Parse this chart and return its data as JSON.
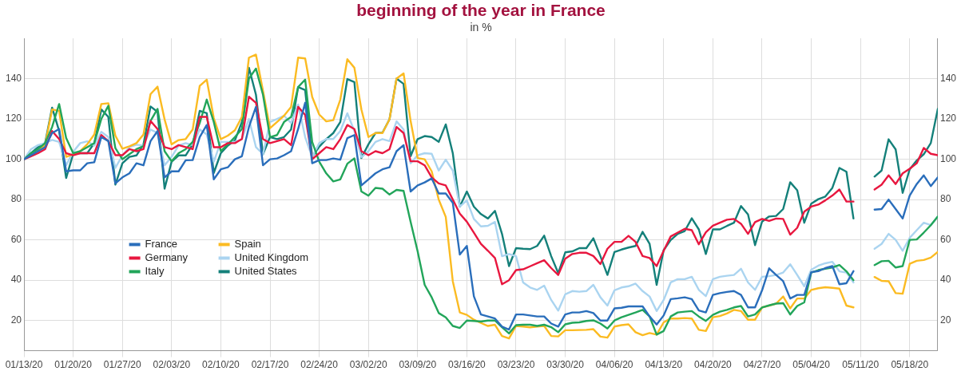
{
  "chart_data": {
    "type": "line",
    "title": "beginning of the year in France",
    "subtitle": "in %",
    "x": [
      "--01-13",
      "--01-14",
      "--01-15",
      "--01-16",
      "--01-17",
      "--01-18",
      "--01-19",
      "--01-20",
      "--01-21",
      "--01-22",
      "--01-23",
      "--01-24",
      "--01-25",
      "--01-26",
      "--01-27",
      "--01-28",
      "--01-29",
      "--01-30",
      "--01-31",
      "--02-01",
      "--02-02",
      "--02-03",
      "--02-04",
      "--02-05",
      "--02-06",
      "--02-07",
      "--02-08",
      "--02-09",
      "--02-10",
      "--02-11",
      "--02-12",
      "--02-13",
      "--02-14",
      "--02-15",
      "--02-16",
      "--02-17",
      "--02-18",
      "--02-19",
      "--02-20",
      "--02-21",
      "--02-22",
      "--02-23",
      "--02-24",
      "--02-25",
      "--02-26",
      "--02-27",
      "--02-28",
      "--02-29",
      "--03-01",
      "--03-02",
      "--03-03",
      "--03-04",
      "--03-05",
      "--03-06",
      "--03-07",
      "--03-08",
      "--03-09",
      "--03-10",
      "--03-11",
      "--03-12",
      "--03-13",
      "--03-14",
      "--03-15",
      "--03-16",
      "--03-17",
      "--03-18",
      "--03-19",
      "--03-20",
      "--03-21",
      "--03-22",
      "--03-23",
      "--03-24",
      "--03-25",
      "--03-26",
      "--03-27",
      "--03-28",
      "--03-29",
      "--03-30",
      "--03-31",
      "--04-01",
      "--04-02",
      "--04-03",
      "--04-04",
      "--04-05",
      "--04-06",
      "--04-07",
      "--04-08",
      "--04-09",
      "--04-10",
      "--04-11",
      "--04-12",
      "--04-13",
      "--04-14",
      "--04-15",
      "--04-16",
      "--04-17",
      "--04-18",
      "--04-19",
      "--04-20",
      "--04-21",
      "--04-22",
      "--04-23",
      "--04-24",
      "--04-25",
      "--04-26",
      "--04-27",
      "--04-28",
      "--04-29",
      "--04-30",
      "--05-01",
      "--05-02",
      "--05-03",
      "--05-04",
      "--05-05",
      "--05-06",
      "--05-07",
      "--05-08",
      "--05-09",
      "--05-10",
      "--05-11",
      "--05-12",
      "--05-13",
      "--05-14",
      "--05-15",
      "--05-16",
      "--05-17",
      "--05-18",
      "--05-19",
      "--05-20",
      "--05-21",
      "--05-22"
    ],
    "series": [
      {
        "name": "France",
        "color": "#2a6ebb",
        "values": [
          100,
          102,
          104,
          106,
          113,
          115,
          94,
          94.5,
          94.5,
          98,
          98.5,
          111,
          109,
          88,
          91,
          93,
          98,
          97,
          109,
          114,
          91,
          94,
          94,
          99.5,
          99.6,
          111,
          117,
          90,
          95,
          96,
          100,
          101.5,
          116,
          126,
          97,
          100,
          100.4,
          102,
          104,
          115,
          128,
          98,
          99.6,
          99.6,
          100.4,
          99.8,
          110.5,
          112,
          87,
          90,
          93,
          95,
          96,
          104,
          107,
          84,
          87,
          88.5,
          90.5,
          83,
          83,
          78.4,
          52.7,
          57,
          32,
          23,
          22,
          21,
          17,
          15.5,
          23,
          23,
          22.5,
          22,
          22,
          18.5,
          17,
          23,
          24,
          24,
          24.7,
          23.7,
          20,
          20,
          26,
          26.3,
          27,
          27,
          27,
          22,
          18,
          22.5,
          30.6,
          31,
          31.5,
          30.6,
          25,
          24,
          32.7,
          33.6,
          34.2,
          34.6,
          32.7,
          26.5,
          26.5,
          35,
          45.9,
          42.6,
          39.5,
          30.9,
          32.7,
          32.7,
          44,
          44.5,
          46,
          47,
          38,
          38.5,
          44.5,
          null,
          null,
          75,
          75.3,
          80,
          75.3,
          70.6,
          82,
          87.7,
          92,
          86.7,
          91
        ]
      },
      {
        "name": "Germany",
        "color": "#e8173f",
        "values": [
          100,
          101.5,
          103,
          105,
          114,
          110,
          103,
          102,
          103,
          103,
          103,
          112,
          109,
          102,
          102,
          105,
          104,
          105,
          119,
          115,
          106,
          105,
          107,
          106,
          105,
          121,
          121,
          106,
          106,
          108,
          108,
          110,
          131,
          128,
          110,
          108,
          109,
          110,
          107,
          126,
          122,
          100,
          103,
          106,
          105,
          110,
          117,
          115,
          104,
          102,
          104,
          103,
          105,
          116,
          113,
          99,
          99,
          97,
          91,
          88,
          87,
          80,
          73,
          69,
          63.6,
          58,
          54.6,
          51,
          38,
          40,
          45,
          45.4,
          46.9,
          48.4,
          49.9,
          46,
          42.6,
          50.7,
          53,
          53.6,
          53.6,
          52,
          48,
          55.6,
          59,
          59,
          62,
          59,
          52,
          51,
          47,
          54.6,
          61.7,
          63.6,
          65.5,
          64.8,
          57.8,
          63.8,
          67,
          68.5,
          70,
          70.4,
          68,
          63,
          68.8,
          70.4,
          69.4,
          70.6,
          70.4,
          62.6,
          66,
          74,
          76.5,
          77.5,
          79.6,
          82,
          85,
          79,
          79,
          null,
          null,
          85,
          87.4,
          92,
          87.7,
          93,
          95.3,
          98,
          105.6,
          102.7,
          102
        ]
      },
      {
        "name": "Italy",
        "color": "#22a55a",
        "values": [
          100,
          103,
          105,
          108,
          116,
          127.4,
          110.5,
          103,
          104,
          106,
          108,
          120,
          126.5,
          105.5,
          100,
          102.5,
          105,
          106.5,
          119,
          125,
          104,
          99,
          103,
          105,
          108.6,
          118,
          129.6,
          118.5,
          104,
          107.4,
          111,
          115,
          140,
          145,
          132,
          111,
          112,
          118.5,
          121,
          135.8,
          139.5,
          108.6,
          98.8,
          93,
          89,
          90,
          97.8,
          100.4,
          84,
          81.9,
          85.8,
          85.4,
          82.5,
          84.8,
          84.3,
          69,
          54.3,
          37.7,
          31.5,
          23.7,
          21.6,
          17.3,
          16.3,
          20,
          19.8,
          19.5,
          20,
          20,
          16.7,
          13.6,
          17.7,
          17.9,
          17.9,
          17.3,
          17.9,
          16.7,
          14.2,
          18.1,
          18.9,
          19.1,
          19.8,
          20.1,
          18.5,
          16,
          20,
          21.6,
          22.8,
          24,
          25.3,
          22,
          13,
          14.8,
          22,
          24,
          24.4,
          24.7,
          22,
          19.8,
          22.8,
          24.4,
          25.3,
          26.5,
          27.2,
          22,
          23,
          26.5,
          27.5,
          28.4,
          28.6,
          23,
          27.2,
          29,
          43.8,
          45,
          45.7,
          46.3,
          47.5,
          44.4,
          40,
          null,
          null,
          47.5,
          49.4,
          49.6,
          46.3,
          47,
          60,
          60.2,
          63.6,
          67.3,
          71.6
        ]
      },
      {
        "name": "Spain",
        "color": "#fbbb22",
        "values": [
          100,
          102,
          104,
          107,
          124.7,
          124,
          101.2,
          102.5,
          104,
          107.4,
          112.3,
          127.4,
          127.8,
          111.7,
          105.2,
          106.4,
          108,
          112.3,
          132.3,
          136,
          119.8,
          107.4,
          109.5,
          110,
          114.8,
          136.4,
          139.5,
          120.4,
          110,
          111.7,
          114.4,
          121,
          150.4,
          151.9,
          134,
          115.4,
          118.5,
          121.6,
          126,
          150.4,
          150,
          130.9,
          122.2,
          118.8,
          119.4,
          129.6,
          149.6,
          145.4,
          124.7,
          111,
          113,
          113,
          119.8,
          140,
          142.6,
          119,
          100.6,
          100,
          94,
          80,
          71.4,
          39.5,
          24,
          22.8,
          20.4,
          18.8,
          17.3,
          17.9,
          12.3,
          11.1,
          17.3,
          17,
          16.6,
          17,
          17.3,
          12.3,
          12.1,
          15.2,
          15.2,
          15.3,
          15.4,
          15.7,
          12,
          11.5,
          17,
          17.7,
          18.1,
          14.2,
          12.7,
          13.8,
          13,
          19.1,
          21,
          21,
          21.2,
          21,
          15.4,
          14.8,
          21.6,
          22.2,
          23.5,
          25.3,
          24.7,
          20.4,
          20.4,
          26.5,
          27.4,
          28.4,
          31.9,
          26,
          30.9,
          30.9,
          35.2,
          36,
          36.5,
          36.2,
          35.8,
          27.4,
          26.5,
          null,
          null,
          41.6,
          39.7,
          39.5,
          33.6,
          33.3,
          48.1,
          49.6,
          50,
          51.2,
          54
        ]
      },
      {
        "name": "United Kingdom",
        "color": "#aad4f0",
        "values": [
          100,
          105,
          107,
          108,
          109.6,
          108.6,
          97,
          103.7,
          108,
          108.9,
          106.8,
          113.6,
          111,
          95.7,
          101.9,
          106,
          107.2,
          106.8,
          114.8,
          113,
          97,
          101.2,
          106.8,
          108,
          107,
          114.8,
          112.3,
          98.8,
          108.6,
          108.6,
          108.6,
          110,
          120,
          106,
          102.5,
          118.5,
          120,
          121.6,
          118,
          127.2,
          111,
          101,
          108,
          110,
          110,
          114,
          122.8,
          114,
          101,
          104,
          108.6,
          110,
          109,
          118.8,
          114.8,
          98,
          102,
          103,
          102.7,
          94.4,
          99.8,
          94.4,
          76.5,
          79.6,
          70.4,
          66.7,
          67,
          68.9,
          51.9,
          53,
          51.9,
          38.9,
          36.4,
          35.2,
          37.3,
          30.2,
          24.9,
          33,
          34.6,
          34.3,
          34.6,
          37.7,
          31.5,
          27.4,
          35,
          36.4,
          37,
          38.3,
          34.6,
          31.9,
          24.7,
          30.2,
          38.9,
          40.5,
          40.5,
          41.7,
          35.2,
          32.1,
          40.5,
          41.7,
          42.2,
          42.6,
          45.7,
          38.9,
          35.2,
          41.7,
          42,
          42.6,
          43.8,
          47.9,
          42.6,
          37,
          45.2,
          47.2,
          48.4,
          49.1,
          44.4,
          43.8,
          38.9,
          null,
          null,
          55.6,
          58,
          63,
          60,
          54.6,
          61,
          64.8,
          68.5,
          67.3,
          71.6
        ]
      },
      {
        "name": "United States",
        "color": "#14807a",
        "values": [
          100,
          103,
          106,
          108,
          125.6,
          114,
          90.7,
          102.7,
          103,
          103,
          108,
          124.7,
          121,
          87.4,
          98,
          101.2,
          101.9,
          107.4,
          126.2,
          123.5,
          85.4,
          98.8,
          101.9,
          101.9,
          107.4,
          124,
          122.8,
          93.2,
          103,
          106.8,
          109.3,
          118.5,
          145.4,
          132,
          102.5,
          111,
          110,
          111,
          114.8,
          135.8,
          134.3,
          101.2,
          106.2,
          110,
          113,
          118.5,
          139.8,
          138.3,
          100.6,
          107.4,
          113,
          113.2,
          119.8,
          140,
          137.4,
          101.5,
          110,
          111.5,
          111,
          108.6,
          117.3,
          103,
          76.5,
          84,
          76.5,
          72.8,
          70.6,
          74.4,
          63,
          47,
          55.9,
          55.6,
          55.4,
          57,
          62.1,
          51.9,
          43.5,
          53.8,
          54.3,
          55.9,
          55.9,
          60.8,
          51.9,
          42.6,
          54,
          55.2,
          56.2,
          57,
          64,
          58,
          37.7,
          54.9,
          59.9,
          63,
          64.4,
          70.7,
          65.2,
          53,
          65.2,
          65.2,
          66.9,
          68.5,
          76.8,
          72.6,
          57.4,
          69.1,
          71.6,
          71.9,
          75.3,
          88.6,
          84.6,
          68.5,
          78,
          80.2,
          81.5,
          85.8,
          95.7,
          93.8,
          70.6,
          null,
          null,
          91.4,
          94.4,
          109.9,
          104.9,
          83.3,
          95,
          99.4,
          102.5,
          108,
          125
        ]
      }
    ],
    "xlim": [
      "--01-13",
      "--05-22"
    ],
    "xticks": [
      {
        "value": "--01-13",
        "label": "01/13/20"
      },
      {
        "value": "--01-20",
        "label": "01/20/20"
      },
      {
        "value": "--01-27",
        "label": "01/27/20"
      },
      {
        "value": "--02-03",
        "label": "02/03/20"
      },
      {
        "value": "--02-10",
        "label": "02/10/20"
      },
      {
        "value": "--02-17",
        "label": "02/17/20"
      },
      {
        "value": "--02-24",
        "label": "02/24/20"
      },
      {
        "value": "--03-02",
        "label": "03/02/20"
      },
      {
        "value": "--03-09",
        "label": "03/09/20"
      },
      {
        "value": "--03-16",
        "label": "03/16/20"
      },
      {
        "value": "--03-23",
        "label": "03/23/20"
      },
      {
        "value": "--03-30",
        "label": "03/30/20"
      },
      {
        "value": "--04-06",
        "label": "04/06/20"
      },
      {
        "value": "--04-13",
        "label": "04/13/20"
      },
      {
        "value": "--04-20",
        "label": "04/20/20"
      },
      {
        "value": "--04-27",
        "label": "04/27/20"
      },
      {
        "value": "--05-04",
        "label": "05/04/20"
      },
      {
        "value": "--05-11",
        "label": "05/11/20"
      },
      {
        "value": "--05-18",
        "label": "05/18/20"
      }
    ],
    "ylim": [
      5,
      160
    ],
    "yticks": [
      20,
      40,
      60,
      80,
      100,
      120,
      140
    ],
    "y2lim": [
      5,
      160
    ],
    "y2ticks": [
      20,
      40,
      60,
      80,
      100,
      120,
      140
    ],
    "grid": true,
    "legend": "bottom left",
    "marker": "none",
    "line_style": "solid"
  }
}
